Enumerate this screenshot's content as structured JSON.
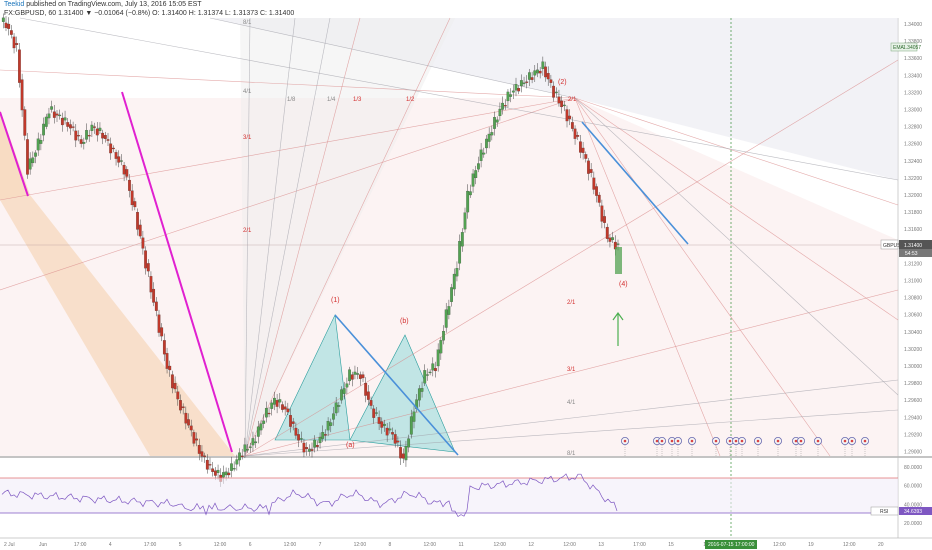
{
  "header": {
    "author": "Teekid",
    "published": "published on TradingView.com, July 13, 2016 15:05 EST",
    "symbol_line": "FX:GBPUSD, 60  1.31400 ▼ −0.01064 (−0.8%)  O: 1.31400  H: 1.31374  L: 1.31373  C: 1.31400"
  },
  "price_axis": {
    "ticks": [
      "1.34000",
      "1.33800",
      "1.33600",
      "1.33400",
      "1.33200",
      "1.33000",
      "1.32800",
      "1.32600",
      "1.32400",
      "1.32200",
      "1.32000",
      "1.31800",
      "1.31600",
      "1.31400",
      "1.31200",
      "1.31000",
      "1.30800",
      "1.30600",
      "1.30400",
      "1.30200",
      "1.30000",
      "1.29800",
      "1.29600",
      "1.29400",
      "1.29200",
      "1.29000"
    ],
    "ema_label": "EMA",
    "ema_value": "1.34057",
    "symbol_tag": "GBPUSD",
    "current_price": "1.31400",
    "countdown": "54:53"
  },
  "rsi_axis": {
    "ticks": [
      "80.0000",
      "60.0000",
      "40.0000",
      "20.0000"
    ],
    "label": "RSI",
    "value": "34.6393"
  },
  "time_axis": {
    "ticks": [
      "2 Jul",
      "Jun",
      "17:00",
      "4",
      "17:00",
      "5",
      "12:00",
      "6",
      "12:00",
      "7",
      "12:00",
      "8",
      "12:00",
      "11",
      "12:00",
      "12",
      "12:00",
      "13",
      "17:00",
      "15",
      "17:00",
      "18",
      "12:00",
      "19",
      "12:00",
      "20"
    ],
    "cursor_label": "2016-07-15 17:00:00"
  },
  "fan_labels": {
    "top": [
      "8/1",
      "4/1",
      "1/8",
      "1/4",
      "1/3",
      "1/2",
      "3/1",
      "2/1"
    ],
    "right": [
      "2/1",
      "2/1",
      "3/1",
      "4/1",
      "8/1"
    ]
  },
  "wave_labels": [
    "(1)",
    "(2)",
    "(a)",
    "(b)",
    "(4)"
  ],
  "colors": {
    "up_candle": "#53a152",
    "down_candle": "#c0392b",
    "trend_line": "#4a90d9",
    "magenta_line": "#e020d0",
    "rsi_line": "#7e57c2",
    "arrow": "#4caf50"
  },
  "chart_data": {
    "type": "candlestick",
    "instrument": "FX:GBPUSD",
    "timeframe": "60",
    "approx_closes": [
      1.34,
      1.337,
      1.323,
      1.326,
      1.33,
      1.329,
      1.328,
      1.326,
      1.328,
      1.327,
      1.325,
      1.323,
      1.318,
      1.312,
      1.306,
      1.3,
      1.296,
      1.293,
      1.29,
      1.288,
      1.287,
      1.288,
      1.29,
      1.291,
      1.294,
      1.296,
      1.295,
      1.292,
      1.29,
      1.291,
      1.293,
      1.296,
      1.299,
      1.299,
      1.295,
      1.293,
      1.292,
      1.289,
      1.295,
      1.299,
      1.3,
      1.306,
      1.312,
      1.32,
      1.324,
      1.327,
      1.33,
      1.332,
      1.333,
      1.334,
      1.335,
      1.332,
      1.33,
      1.327,
      1.324,
      1.32,
      1.315,
      1.314
    ],
    "last_close": 1.314,
    "rsi_last": 34.6393,
    "rsi_levels": [
      70,
      30
    ]
  }
}
